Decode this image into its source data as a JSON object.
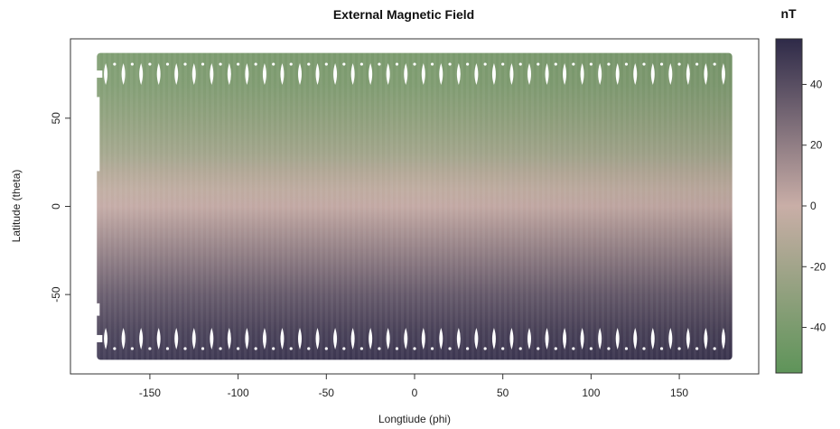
{
  "chart_data": {
    "type": "heatmap",
    "title": "External Magnetic Field",
    "xlabel": "Longtiude (phi)",
    "ylabel": "Latitude (theta)",
    "xlim": [
      -195,
      195
    ],
    "ylim": [
      -95,
      95
    ],
    "x_ticks": [
      -150,
      -100,
      -50,
      0,
      50,
      100,
      150
    ],
    "x_tick_labels": [
      "-150",
      "-100",
      "-50",
      "0",
      "50",
      "100",
      "150"
    ],
    "y_ticks": [
      -50,
      0,
      50
    ],
    "y_tick_labels": [
      "-50",
      "0",
      "50"
    ],
    "data_extent": {
      "lon": [
        -180,
        180
      ],
      "lat": [
        -87,
        87
      ]
    },
    "gap_latitudes": [
      -75,
      75
    ],
    "gap_longitude_step": 10,
    "colorbar": {
      "title": "nT",
      "range": [
        -55,
        55
      ],
      "ticks": [
        40,
        20,
        0,
        -20,
        -40
      ],
      "tick_labels": [
        "40",
        "20",
        "0",
        "-20",
        "-40"
      ],
      "low_color": "#5e9459",
      "mid_color": "#c9aea7",
      "high_color": "#2e2a48"
    },
    "field_profile": {
      "latitude": [
        -87,
        -70,
        -50,
        -30,
        -15,
        0,
        10,
        20,
        30,
        50,
        70,
        87
      ],
      "value": [
        50,
        45,
        35,
        22,
        12,
        2,
        -5,
        -12,
        -20,
        -30,
        -38,
        -40
      ]
    },
    "grid": false,
    "legend": "right"
  }
}
